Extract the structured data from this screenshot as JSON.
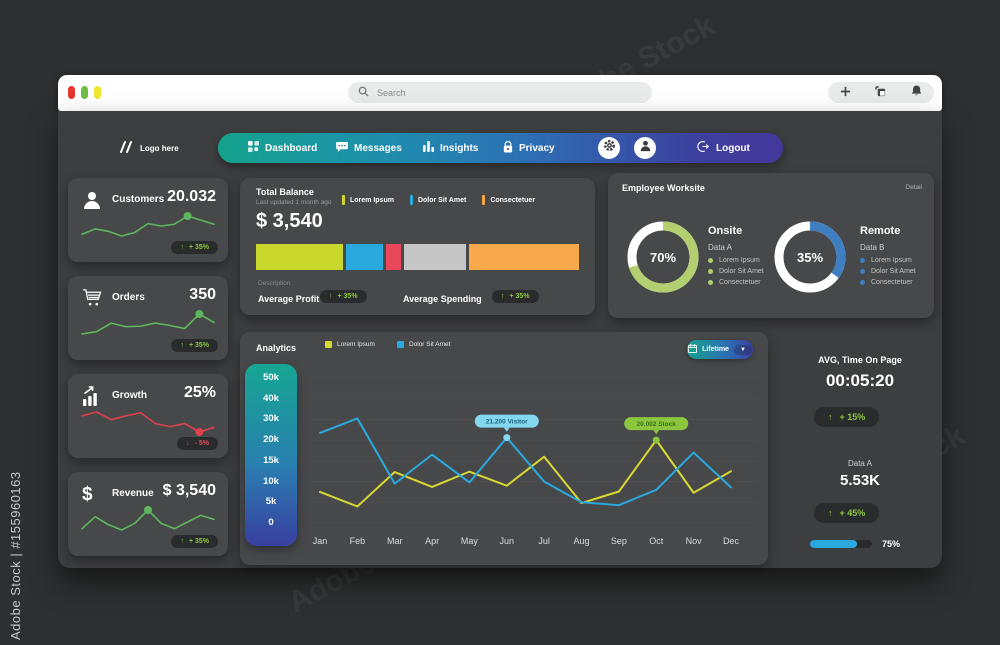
{
  "watermark": {
    "side_text": "Adobe Stock | #155960163",
    "tile_text": "Adobe Stock"
  },
  "browser": {
    "search_placeholder": "Search",
    "traffic_colors": [
      "#e5372e",
      "#6fbe44",
      "#efe92e"
    ]
  },
  "navbar": {
    "logo_label": "Logo here",
    "items": [
      {
        "label": "Dashboard"
      },
      {
        "label": "Messages"
      },
      {
        "label": "Insights"
      },
      {
        "label": "Privacy"
      }
    ],
    "logout_label": "Logout"
  },
  "stat_cards": [
    {
      "label": "Customers",
      "value": "20.032",
      "change": "+ 35%",
      "direction": "up"
    },
    {
      "label": "Orders",
      "value": "350",
      "change": "+ 35%",
      "direction": "up"
    },
    {
      "label": "Growth",
      "value": "25%",
      "change": "- 5%",
      "direction": "down"
    },
    {
      "label": "Revenue",
      "value": "$ 3,540",
      "change": "+ 35%",
      "direction": "up"
    }
  ],
  "total_balance": {
    "title": "Total Balance",
    "subtitle": "Last updated 1 month ago",
    "amount": "$ 3,540",
    "legend": [
      {
        "label": "Lorem Ipsum",
        "color": "#c9d62c"
      },
      {
        "label": "Dolor Sit Amet",
        "color": "#2aa9de"
      },
      {
        "label": "Consectetuer",
        "color": "#f8a94c"
      }
    ],
    "description_label": "Description",
    "metrics": [
      {
        "label": "Average Profit",
        "change": "+ 35%",
        "direction": "up"
      },
      {
        "label": "Average Spending",
        "change": "+ 35%",
        "direction": "up"
      }
    ]
  },
  "employee_worksite": {
    "title": "Employee Worksite",
    "detail_label": "Detail",
    "donuts": [
      {
        "percent_label": "70%",
        "label": "Onsite",
        "sublabel": "Data A",
        "legend": [
          "Lorem Ipsum",
          "Dolor Sit Amet",
          "Consectetuer"
        ]
      },
      {
        "percent_label": "35%",
        "label": "Remote",
        "sublabel": "Data B",
        "legend": [
          "Lorem Ipsum",
          "Dolor Sit Amet",
          "Consectetuer"
        ]
      }
    ]
  },
  "analytics": {
    "title": "Analytics",
    "range_label": "Lifetime"
  },
  "right_stats": {
    "avg_title": "AVG, Time On Page",
    "avg_value": "00:05:20",
    "avg_change": "+ 15%",
    "data_title": "Data A",
    "data_value": "5.53K",
    "data_change": "+ 45%",
    "progress_label": "75%",
    "progress_percent": 75,
    "progress_color": "#2aa9de"
  },
  "chart_data": [
    {
      "id": "analytics-lines",
      "type": "line",
      "title": "Analytics",
      "x": [
        "Jan",
        "Feb",
        "Mar",
        "Apr",
        "May",
        "Jun",
        "Jul",
        "Aug",
        "Sep",
        "Oct",
        "Nov",
        "Dec"
      ],
      "y_ticks": [
        "0",
        "5k",
        "10k",
        "15k",
        "20k",
        "30k",
        "40k",
        "50k"
      ],
      "y_scale_stops": [
        0,
        5000,
        10000,
        15000,
        20000,
        30000,
        40000,
        50000
      ],
      "grid": true,
      "legend_position": "top",
      "series": [
        {
          "name": "Lorem Ipsum",
          "color": "#d8d832",
          "values": [
            7500,
            4000,
            12300,
            8700,
            12400,
            9000,
            16000,
            4800,
            7600,
            20002,
            7300,
            12500
          ]
        },
        {
          "name": "Dolor Sit Amet",
          "color": "#2aa9de",
          "values": [
            23500,
            30500,
            9500,
            16500,
            9800,
            21200,
            10000,
            5000,
            4300,
            8000,
            17000,
            8600
          ]
        }
      ],
      "annotations": [
        {
          "series": 1,
          "month_index": 5,
          "label": "21.200 Visitor",
          "pill_color": "#85d6ef",
          "text_color": "#1c6480"
        },
        {
          "series": 0,
          "month_index": 9,
          "label": "20.002 Stock",
          "pill_color": "#8cc63f",
          "text_color": "#3f6d14"
        }
      ]
    },
    {
      "id": "balance-stacked-bar",
      "type": "bar",
      "stacked": true,
      "segments": [
        {
          "color": "#c9d62c",
          "pct": 27
        },
        {
          "color": "#2aa9de",
          "pct": 11.5
        },
        {
          "color": "#e8485a",
          "pct": 4.5
        },
        {
          "color": "#c6c6c6",
          "pct": 19.5
        },
        {
          "color": "#f8a94c",
          "pct": 34
        }
      ]
    },
    {
      "id": "onsite-donut",
      "type": "pie",
      "values": [
        70,
        30
      ],
      "colors": [
        "#b4cf70",
        "#ffffff"
      ],
      "center_label": "70%"
    },
    {
      "id": "remote-donut",
      "type": "pie",
      "values": [
        35,
        65
      ],
      "colors": [
        "#3f7ec0",
        "#ffffff"
      ],
      "center_label": "35%"
    },
    {
      "id": "spark-customers",
      "type": "line",
      "color": "#5eb75e",
      "values": [
        2.5,
        3.4,
        3.0,
        2.2,
        2.8,
        4.3,
        3.9,
        4.2,
        5.6,
        4.9,
        4.2
      ],
      "dot_index": 8
    },
    {
      "id": "spark-orders",
      "type": "line",
      "color": "#5eb75e",
      "values": [
        2.2,
        2.6,
        4.0,
        3.4,
        3.5,
        4.0,
        3.6,
        3.1,
        5.5,
        4.1
      ],
      "dot_index": 8
    },
    {
      "id": "spark-growth",
      "type": "line",
      "color": "#e0404f",
      "values": [
        4.2,
        4.7,
        3.7,
        4.2,
        4.6,
        3.2,
        2.8,
        3.2,
        2.1,
        2.7
      ],
      "dot_index": 8
    },
    {
      "id": "spark-revenue",
      "type": "line",
      "color": "#5eb75e",
      "values": [
        3.2,
        4.1,
        3.5,
        3.1,
        3.6,
        4.6,
        3.6,
        3.2,
        3.7,
        4.2,
        3.9
      ],
      "dot_index": 5
    }
  ]
}
